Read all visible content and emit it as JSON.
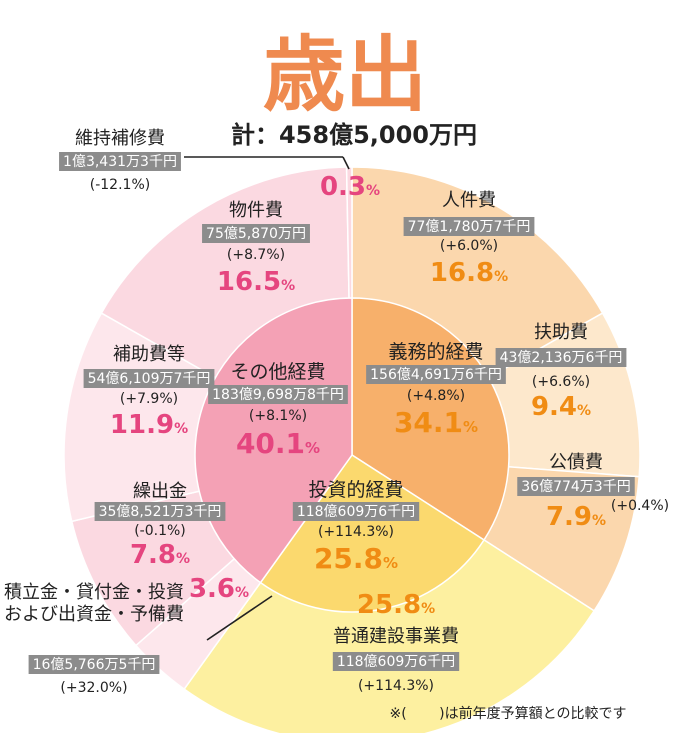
{
  "title": "歳出",
  "total": "計：458億5,000万円",
  "note": "※(　　 )は前年度予算額との比較です",
  "colors": {
    "title": "#ef8a4f",
    "pink_text": "#e5457f",
    "orange_text": "#f08c14",
    "label_bg": "#8c8c8c",
    "outer_pink": "#fbd9e1",
    "outer_pink_light": "#fde7ec",
    "outer_orange": "#fbd7ad",
    "outer_orange_light": "#fde8cc",
    "outer_yellow": "#fdf0a0",
    "inner_pink": "#f4a1b5",
    "inner_orange": "#f7b06b",
    "inner_yellow": "#fbd96e"
  },
  "chart_data": {
    "type": "pie",
    "title": "歳出",
    "total": "計：458億5,000万円",
    "inner": [
      {
        "name": "義務的経費",
        "amount": "156億4,691万6千円",
        "change": "(+4.8%)",
        "percent": "34.1",
        "value": 34.1
      },
      {
        "name": "投資的経費",
        "amount": "118億609万6千円",
        "change": "(+114.3%)",
        "percent": "25.8",
        "value": 25.8
      },
      {
        "name": "その他経費",
        "amount": "183億9,698万8千円",
        "change": "(+8.1%)",
        "percent": "40.1",
        "value": 40.1
      }
    ],
    "outer": [
      {
        "name": "人件費",
        "amount": "77億1,780万7千円",
        "change": "(+6.0%)",
        "percent": "16.8",
        "value": 16.8,
        "group": "義務的経費"
      },
      {
        "name": "扶助費",
        "amount": "43億2,136万6千円",
        "change": "(+6.6%)",
        "percent": "9.4",
        "value": 9.4,
        "group": "義務的経費"
      },
      {
        "name": "公債費",
        "amount": "36億774万3千円",
        "change": "(+0.4%)",
        "percent": "7.9",
        "value": 7.9,
        "group": "義務的経費"
      },
      {
        "name": "普通建設事業費",
        "amount": "118億609万6千円",
        "change": "(+114.3%)",
        "percent": "25.8",
        "value": 25.8,
        "group": "投資的経費"
      },
      {
        "name": "積立金・貸付金・投資\nおよび出資金・予備費",
        "amount": "16億5,766万5千円",
        "change": "(+32.0%)",
        "percent": "3.6",
        "value": 3.6,
        "group": "その他経費"
      },
      {
        "name": "繰出金",
        "amount": "35億8,521万3千円",
        "change": "(-0.1%)",
        "percent": "7.8",
        "value": 7.8,
        "group": "その他経費"
      },
      {
        "name": "補助費等",
        "amount": "54億6,109万7千円",
        "change": "(+7.9%)",
        "percent": "11.9",
        "value": 11.9,
        "group": "その他経費"
      },
      {
        "name": "物件費",
        "amount": "75億5,870万円",
        "change": "(+8.7%)",
        "percent": "16.5",
        "value": 16.5,
        "group": "その他経費"
      },
      {
        "name": "維持補修費",
        "amount": "1億3,431万3千円",
        "change": "(-12.1%)",
        "percent": "0.3",
        "value": 0.3,
        "group": "その他経費"
      }
    ],
    "percent_unit": "%"
  }
}
